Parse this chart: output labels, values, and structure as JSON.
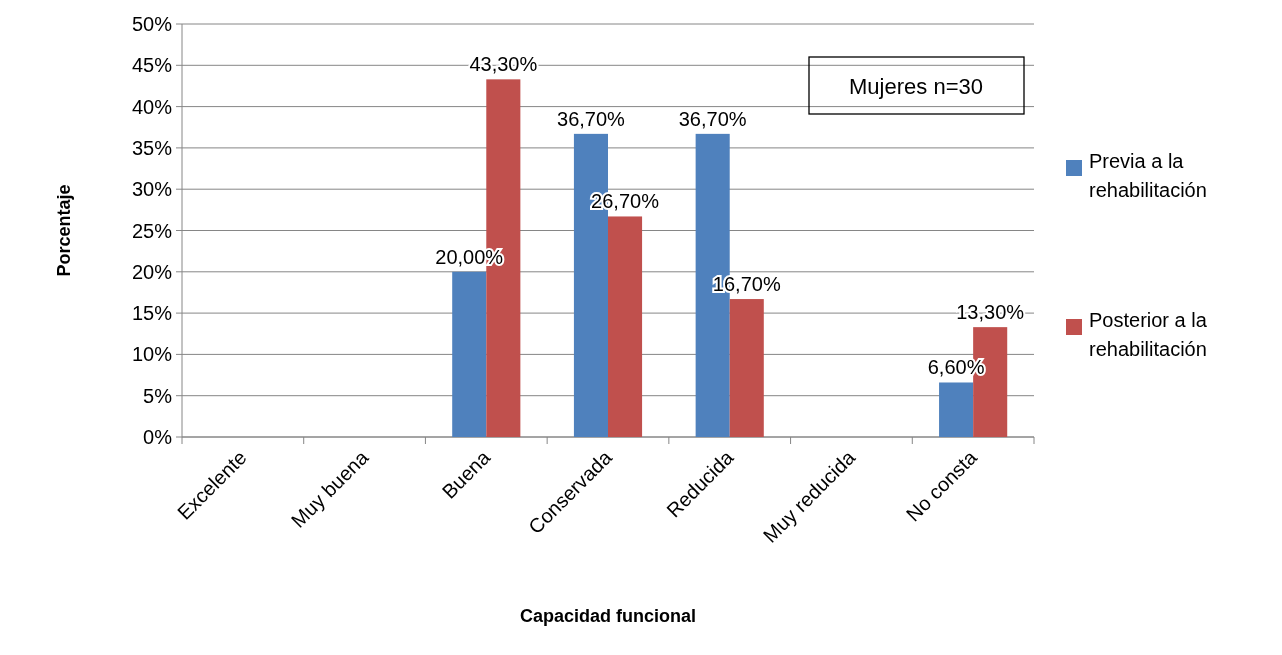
{
  "chart_data": {
    "type": "bar",
    "xlabel": "Capacidad funcional",
    "ylabel": "Porcentaje",
    "categories": [
      "Excelente",
      "Muy buena",
      "Buena",
      "Conservada",
      "Reducida",
      "Muy reducida",
      "No consta"
    ],
    "series": [
      {
        "name": "Previa a la rehabilitación",
        "color": "#4f81bd",
        "values": [
          null,
          null,
          20,
          36.7,
          36.7,
          null,
          6.6
        ],
        "value_labels": [
          null,
          null,
          "20,00%",
          "36,70%",
          "36,70%",
          null,
          "6,60%"
        ]
      },
      {
        "name": "Posterior a la rehabilitación",
        "color": "#c0504d",
        "values": [
          null,
          null,
          43.3,
          26.7,
          16.7,
          null,
          13.3
        ],
        "value_labels": [
          null,
          null,
          "43,30%",
          "26,70%",
          "16,70%",
          null,
          "13,30%"
        ]
      }
    ],
    "ylim": [
      0,
      50
    ],
    "yticks": [
      {
        "value": 0,
        "label": "0%"
      },
      {
        "value": 5,
        "label": "5%"
      },
      {
        "value": 10,
        "label": "10%"
      },
      {
        "value": 15,
        "label": "15%"
      },
      {
        "value": 20,
        "label": "20%"
      },
      {
        "value": 25,
        "label": "25%"
      },
      {
        "value": 30,
        "label": "30%"
      },
      {
        "value": 35,
        "label": "35%"
      },
      {
        "value": 40,
        "label": "40%"
      },
      {
        "value": 45,
        "label": "45%"
      },
      {
        "value": 50,
        "label": "50%"
      }
    ],
    "grid": "y",
    "legend": "right",
    "annotations": [
      "Mujeres n=30"
    ]
  }
}
